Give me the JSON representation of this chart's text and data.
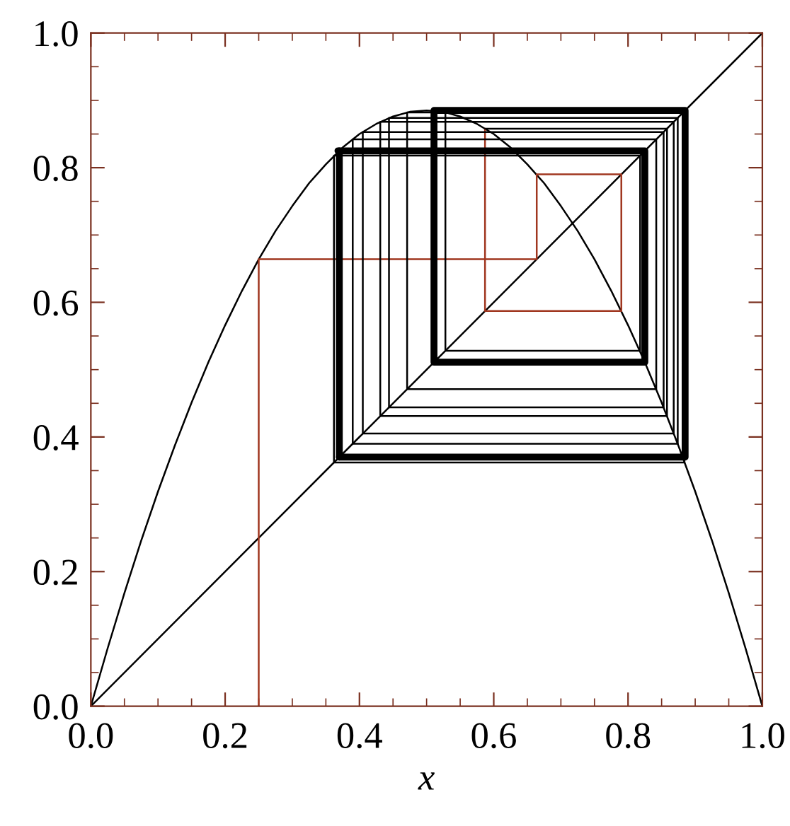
{
  "chart_data": {
    "type": "line",
    "xlabel": "x",
    "xlim": [
      0,
      1
    ],
    "ylim": [
      0,
      1
    ],
    "xticks": [
      {
        "value": 0,
        "label": "0.0"
      },
      {
        "value": 0.2,
        "label": "0.2"
      },
      {
        "value": 0.4,
        "label": "0.4"
      },
      {
        "value": 0.6,
        "label": "0.6"
      },
      {
        "value": 0.8,
        "label": "0.8"
      },
      {
        "value": 1,
        "label": "1.0"
      }
    ],
    "yticks": [
      {
        "value": 0,
        "label": "0.0"
      },
      {
        "value": 0.2,
        "label": "0.2"
      },
      {
        "value": 0.4,
        "label": "0.4"
      },
      {
        "value": 0.6,
        "label": "0.6"
      },
      {
        "value": 0.8,
        "label": "0.8"
      },
      {
        "value": 1,
        "label": "1.0"
      }
    ],
    "marker": "none",
    "line_style": "solid",
    "series": [
      {
        "color": "#000000",
        "x": [
          0,
          0.025,
          0.05,
          0.075,
          0.1,
          0.125,
          0.15,
          0.175,
          0.2,
          0.225,
          0.25,
          0.275,
          0.3,
          0.325,
          0.35,
          0.375,
          0.4,
          0.425,
          0.45,
          0.475,
          0.5,
          0.525,
          0.55,
          0.575,
          0.6,
          0.625,
          0.65,
          0.675,
          0.7,
          0.725,
          0.75,
          0.775,
          0.8,
          0.825,
          0.85,
          0.875,
          0.9,
          0.925,
          0.95,
          0.975,
          1
        ],
        "values": [
          0,
          0.086,
          0.168,
          0.246,
          0.319,
          0.387,
          0.451,
          0.511,
          0.566,
          0.617,
          0.664,
          0.706,
          0.743,
          0.777,
          0.805,
          0.83,
          0.85,
          0.865,
          0.876,
          0.883,
          0.885,
          0.883,
          0.876,
          0.865,
          0.85,
          0.83,
          0.805,
          0.777,
          0.743,
          0.706,
          0.664,
          0.617,
          0.566,
          0.511,
          0.451,
          0.387,
          0.319,
          0.246,
          0.168,
          0.086,
          0
        ]
      },
      {
        "color": "#000000",
        "x": [
          0,
          1
        ],
        "values": [
          0,
          1
        ]
      },
      {
        "color": "#a0361f",
        "x": [
          0.25,
          0.25,
          0.664,
          0.664,
          0.79,
          0.79,
          0.587,
          0.587
        ],
        "values": [
          0,
          0.664,
          0.664,
          0.79,
          0.79,
          0.587,
          0.587,
          0.858
        ]
      },
      {
        "color": "#000000",
        "x": [
          0.587,
          0.858,
          0.858,
          0.431,
          0.431,
          0.868,
          0.868,
          0.405,
          0.405,
          0.853,
          0.853,
          0.444,
          0.444,
          0.874,
          0.874,
          0.39,
          0.39,
          0.842,
          0.842,
          0.471,
          0.471,
          0.882,
          0.882,
          0.368,
          0.368,
          0.824,
          0.824,
          0.514,
          0.514,
          0.884,
          0.884,
          0.362,
          0.362,
          0.818,
          0.818,
          0.528,
          0.528,
          0.882,
          0.882,
          0.368,
          0.368
        ],
        "values": [
          0.858,
          0.858,
          0.431,
          0.431,
          0.868,
          0.868,
          0.405,
          0.405,
          0.853,
          0.853,
          0.444,
          0.444,
          0.874,
          0.874,
          0.39,
          0.39,
          0.842,
          0.842,
          0.471,
          0.471,
          0.882,
          0.882,
          0.368,
          0.368,
          0.824,
          0.824,
          0.514,
          0.514,
          0.884,
          0.884,
          0.362,
          0.362,
          0.818,
          0.818,
          0.528,
          0.528,
          0.882,
          0.882,
          0.368,
          0.368,
          0.825
        ]
      },
      {
        "color": "#000000",
        "x": [
          0.368,
          0.37,
          0.825,
          0.825,
          0.511,
          0.511,
          0.885,
          0.885,
          0.37
        ],
        "values": [
          0.825,
          0.825,
          0.825,
          0.511,
          0.511,
          0.885,
          0.885,
          0.37,
          0.37
        ]
      },
      {
        "color": "#000000",
        "x": [
          0.37,
          0.37
        ],
        "values": [
          0.37,
          0.825
        ]
      }
    ]
  }
}
